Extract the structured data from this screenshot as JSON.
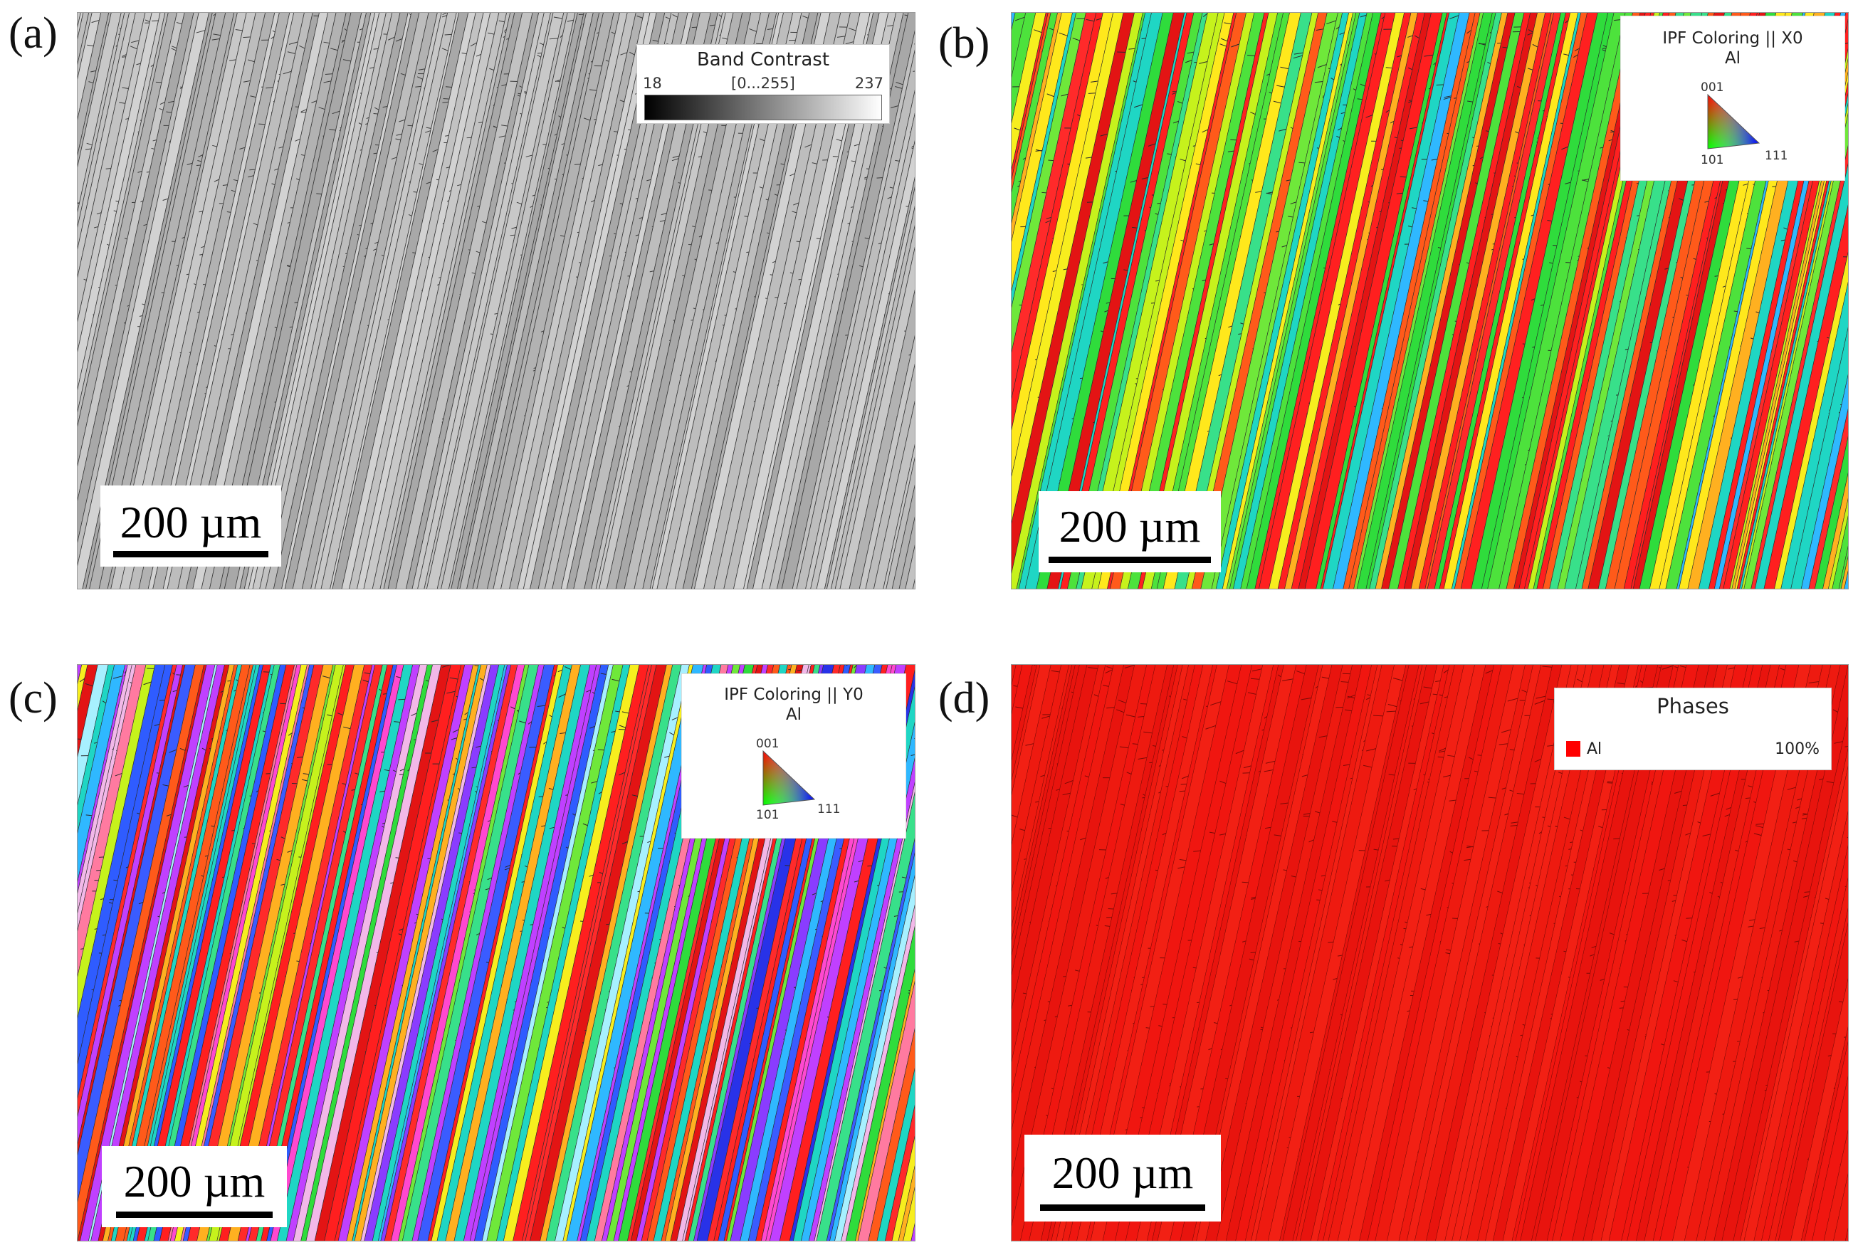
{
  "panels": {
    "a": {
      "label": "(a)",
      "scale_bar": "200 µm"
    },
    "b": {
      "label": "(b)",
      "scale_bar": "200 µm"
    },
    "c": {
      "label": "(c)",
      "scale_bar": "200 µm"
    },
    "d": {
      "label": "(d)",
      "scale_bar": "200 µm"
    }
  },
  "band_contrast_legend": {
    "title": "Band Contrast",
    "min": "18",
    "range": "[0...255]",
    "max": "237"
  },
  "ipf_x_legend": {
    "title": "IPF Coloring || X0",
    "phase": "Al",
    "pole_top": "001",
    "pole_left": "101",
    "pole_right": "111"
  },
  "ipf_y_legend": {
    "title": "IPF Coloring || Y0",
    "phase": "Al",
    "pole_top": "001",
    "pole_left": "101",
    "pole_right": "111"
  },
  "phases_legend": {
    "title": "Phases",
    "phase_name": "Al",
    "phase_fraction": "100%",
    "phase_color": "#ff0000"
  },
  "colors": {
    "band_contrast_base": "#b9b9b9",
    "phase_map_red": "#ee1a10",
    "grain_boundary": "#1a1a1a"
  }
}
